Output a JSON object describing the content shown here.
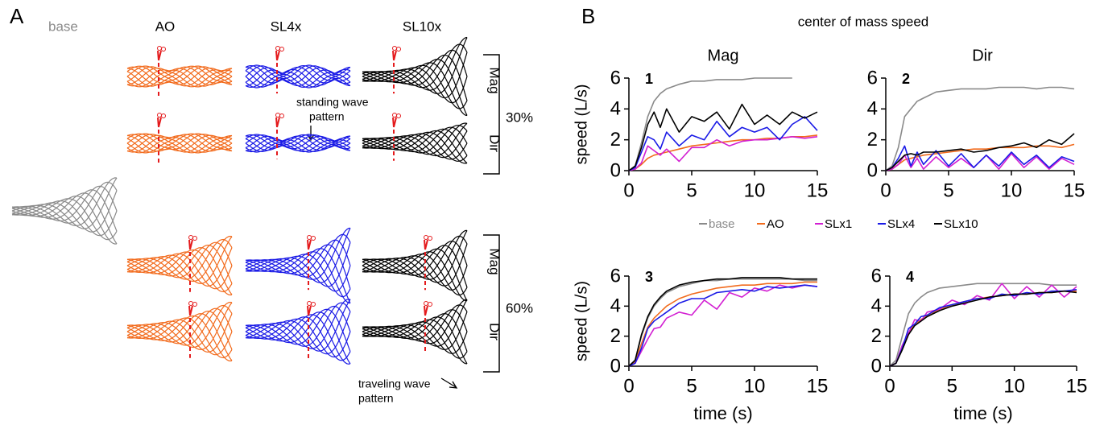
{
  "panel_a": {
    "label": "A",
    "base_label": "base",
    "columns": [
      "AO",
      "SL4x",
      "SL10x"
    ],
    "groups": [
      {
        "rows": [
          "Mag",
          "Dir"
        ],
        "label": "30%"
      },
      {
        "rows": [
          "Mag",
          "Dir"
        ],
        "label": "60%"
      }
    ],
    "annotations": [
      {
        "lines": [
          "standing wave",
          "pattern"
        ]
      },
      {
        "lines": [
          "traveling wave",
          "pattern"
        ]
      }
    ]
  },
  "panel_b": {
    "label": "B",
    "title": "center of mass speed",
    "column_titles": [
      "Mag",
      "Dir"
    ],
    "legend": [
      {
        "name": "base",
        "color": "#8a8a8a"
      },
      {
        "name": "AO",
        "color": "#f26b1d"
      },
      {
        "name": "SLx1",
        "color": "#d21fd2"
      },
      {
        "name": "SLx4",
        "color": "#1a1ae6"
      },
      {
        "name": "SLx10",
        "color": "#000000"
      }
    ]
  },
  "chart_data": [
    {
      "type": "line",
      "label": "1",
      "ylabel": "speed (L/s)",
      "x": [
        0,
        0.5,
        1,
        1.5,
        2,
        2.5,
        3,
        4,
        5,
        6,
        7,
        8,
        9,
        10,
        11,
        12,
        13,
        14,
        15
      ],
      "xlim": [
        0,
        15
      ],
      "xticks": [
        0,
        5,
        10,
        15
      ],
      "ylim": [
        0,
        6
      ],
      "yticks": [
        0,
        2,
        4,
        6
      ],
      "series": [
        {
          "values": [
            0,
            0.3,
            1.8,
            3.5,
            4.5,
            5.0,
            5.3,
            5.6,
            5.8,
            5.8,
            5.9,
            5.9,
            5.9,
            6.0,
            6.0,
            6.0,
            6.0,
            null,
            null
          ]
        },
        {
          "values": [
            0,
            0.1,
            0.4,
            0.8,
            1.0,
            1.1,
            1.2,
            1.4,
            1.6,
            1.7,
            1.8,
            1.9,
            2.0,
            2.0,
            2.1,
            2.1,
            2.2,
            2.2,
            2.3
          ]
        },
        {
          "values": [
            0,
            0.1,
            0.5,
            1.6,
            1.3,
            1.0,
            1.4,
            0.6,
            1.5,
            1.5,
            2.0,
            1.6,
            1.9,
            2.0,
            2.0,
            2.1,
            2.2,
            2.1,
            2.2
          ]
        },
        {
          "values": [
            0,
            0.2,
            1.2,
            2.2,
            2.0,
            1.4,
            2.5,
            1.6,
            2.3,
            2.0,
            3.2,
            2.2,
            2.8,
            2.5,
            2.8,
            2.0,
            3.0,
            3.5,
            2.6
          ]
        },
        {
          "values": [
            0,
            0.3,
            1.5,
            3.0,
            3.8,
            2.8,
            4.0,
            2.5,
            3.5,
            3.2,
            3.8,
            2.7,
            4.3,
            3.0,
            3.6,
            3.0,
            3.8,
            3.4,
            3.8
          ]
        }
      ]
    },
    {
      "type": "line",
      "label": "2",
      "x": [
        0,
        0.5,
        1,
        1.5,
        2,
        2.5,
        3,
        4,
        5,
        6,
        7,
        8,
        9,
        10,
        11,
        12,
        13,
        14,
        15
      ],
      "xlim": [
        0,
        15
      ],
      "xticks": [
        0,
        5,
        10,
        15
      ],
      "ylim": [
        0,
        6
      ],
      "yticks": [
        0,
        2,
        4,
        6
      ],
      "series": [
        {
          "values": [
            0,
            0.3,
            1.5,
            3.5,
            4.0,
            4.5,
            4.7,
            5.1,
            5.2,
            5.3,
            5.3,
            5.3,
            5.4,
            5.4,
            5.4,
            5.3,
            5.4,
            5.4,
            5.3
          ]
        },
        {
          "values": [
            0,
            0.1,
            0.4,
            0.7,
            0.8,
            0.9,
            1.0,
            1.1,
            1.2,
            1.3,
            1.4,
            1.4,
            1.5,
            1.5,
            1.5,
            1.6,
            1.6,
            1.5,
            1.7
          ]
        },
        {
          "values": [
            0,
            0.1,
            0.4,
            1.0,
            0.2,
            0.8,
            0.1,
            0.9,
            0.2,
            0.8,
            0.2,
            1.0,
            0.1,
            1.1,
            0.2,
            0.9,
            0.1,
            0.8,
            0.4
          ]
        },
        {
          "values": [
            0,
            0.2,
            0.8,
            1.6,
            0.3,
            1.2,
            0.4,
            1.3,
            0.3,
            1.1,
            0.2,
            1.0,
            0.3,
            1.2,
            0.4,
            1.0,
            0.2,
            0.9,
            0.6
          ]
        },
        {
          "values": [
            0,
            0.2,
            0.6,
            1.0,
            1.1,
            1.0,
            1.2,
            1.2,
            1.3,
            1.4,
            1.2,
            1.3,
            1.5,
            1.6,
            1.8,
            1.5,
            2.0,
            1.7,
            2.4
          ]
        }
      ]
    },
    {
      "type": "line",
      "label": "3",
      "ylabel": "speed (L/s)",
      "xlabel": "time (s)",
      "x": [
        0,
        0.5,
        1,
        1.5,
        2,
        2.5,
        3,
        4,
        5,
        6,
        7,
        8,
        9,
        10,
        11,
        12,
        13,
        14,
        15
      ],
      "xlim": [
        0,
        15
      ],
      "xticks": [
        0,
        5,
        10,
        15
      ],
      "ylim": [
        0,
        6
      ],
      "yticks": [
        0,
        2,
        4,
        6
      ],
      "series": [
        {
          "values": [
            0,
            0.4,
            2.0,
            3.2,
            4.0,
            4.5,
            4.9,
            5.3,
            5.5,
            5.7,
            5.7,
            5.8,
            5.8,
            5.8,
            5.8,
            5.8,
            5.8,
            5.7,
            5.7
          ]
        },
        {
          "values": [
            0,
            0.3,
            1.5,
            2.6,
            3.2,
            3.6,
            4.0,
            4.5,
            4.8,
            5.0,
            5.2,
            5.3,
            5.4,
            5.4,
            5.5,
            5.5,
            5.5,
            5.6,
            5.6
          ]
        },
        {
          "values": [
            0,
            0.2,
            1.0,
            1.8,
            2.5,
            2.6,
            3.2,
            3.6,
            3.4,
            4.4,
            3.8,
            4.9,
            4.6,
            5.2,
            5.0,
            5.4,
            5.2,
            5.4,
            5.3
          ]
        },
        {
          "values": [
            0,
            0.2,
            1.2,
            2.5,
            3.0,
            3.3,
            3.6,
            4.2,
            4.5,
            4.5,
            4.9,
            5.0,
            5.1,
            5.0,
            5.3,
            5.2,
            5.3,
            5.4,
            5.3
          ]
        },
        {
          "values": [
            0,
            0.4,
            2.1,
            3.3,
            4.1,
            4.6,
            5.0,
            5.4,
            5.6,
            5.7,
            5.8,
            5.8,
            5.9,
            5.9,
            5.9,
            5.9,
            5.8,
            5.8,
            5.8
          ]
        }
      ]
    },
    {
      "type": "line",
      "label": "4",
      "xlabel": "time (s)",
      "x": [
        0,
        0.5,
        1,
        1.5,
        2,
        2.5,
        3,
        4,
        5,
        6,
        7,
        8,
        9,
        10,
        11,
        12,
        13,
        14,
        15
      ],
      "xlim": [
        0,
        15
      ],
      "xticks": [
        0,
        5,
        10,
        15
      ],
      "ylim": [
        0,
        6
      ],
      "yticks": [
        0,
        2,
        4,
        6
      ],
      "series": [
        {
          "values": [
            0,
            0.4,
            2.0,
            3.5,
            4.2,
            4.6,
            4.9,
            5.2,
            5.3,
            5.4,
            5.5,
            5.5,
            5.5,
            5.5,
            5.5,
            5.5,
            5.4,
            5.4,
            5.4
          ]
        },
        {
          "values": [
            0,
            0.2,
            1.2,
            2.2,
            2.8,
            3.1,
            3.4,
            3.8,
            4.1,
            4.3,
            4.5,
            4.6,
            4.7,
            4.8,
            4.8,
            4.9,
            4.9,
            5.0,
            5.0
          ]
        },
        {
          "values": [
            0,
            0.2,
            1.4,
            2.2,
            3.1,
            3.0,
            3.6,
            3.8,
            4.4,
            4.1,
            4.7,
            4.4,
            5.5,
            4.5,
            5.3,
            4.6,
            5.4,
            4.6,
            5.3
          ]
        },
        {
          "values": [
            0,
            0.2,
            1.2,
            2.5,
            2.8,
            3.3,
            3.4,
            3.9,
            4.1,
            4.3,
            4.5,
            4.5,
            4.8,
            4.7,
            4.9,
            4.8,
            5.0,
            5.0,
            5.1
          ]
        },
        {
          "values": [
            0,
            0.2,
            1.1,
            2.1,
            2.7,
            3.0,
            3.3,
            3.7,
            4.0,
            4.2,
            4.4,
            4.6,
            4.7,
            4.8,
            4.8,
            4.9,
            4.9,
            5.0,
            4.9
          ]
        }
      ]
    }
  ]
}
